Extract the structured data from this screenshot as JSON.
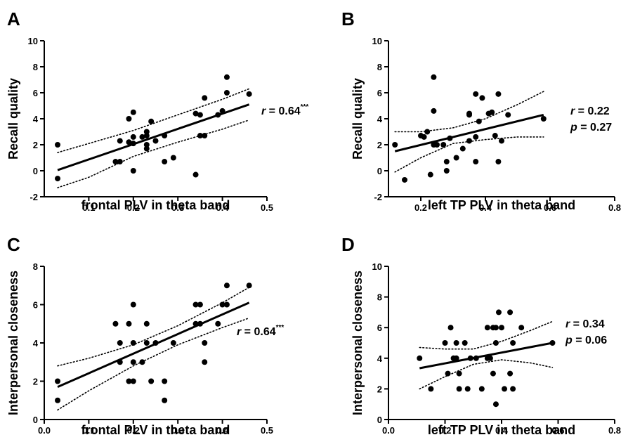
{
  "chart_data": [
    {
      "panel": "A",
      "type": "scatter",
      "xlabel": "frontal PLV in theta band",
      "ylabel": "Recall quality",
      "xlim": [
        0.0,
        0.5
      ],
      "ylim": [
        -2,
        10
      ],
      "xticks": [
        0.1,
        0.2,
        0.3,
        0.4,
        0.5
      ],
      "xtick_labels": [
        "0.1",
        "0.2",
        "0.3",
        "0.4",
        "0.5"
      ],
      "yticks": [
        -2,
        0,
        2,
        4,
        6,
        8,
        10
      ],
      "ytick_labels": [
        "-2",
        "0",
        "2",
        "4",
        "6",
        "8",
        "10"
      ],
      "points": [
        [
          0.03,
          2.0
        ],
        [
          0.03,
          -0.6
        ],
        [
          0.16,
          0.7
        ],
        [
          0.17,
          2.3
        ],
        [
          0.17,
          0.7
        ],
        [
          0.19,
          2.2
        ],
        [
          0.19,
          4.0
        ],
        [
          0.2,
          4.5
        ],
        [
          0.2,
          2.1
        ],
        [
          0.2,
          0.0
        ],
        [
          0.2,
          2.6
        ],
        [
          0.22,
          2.6
        ],
        [
          0.23,
          2.7
        ],
        [
          0.23,
          3.0
        ],
        [
          0.23,
          1.7
        ],
        [
          0.23,
          2.0
        ],
        [
          0.24,
          3.8
        ],
        [
          0.25,
          2.3
        ],
        [
          0.27,
          2.7
        ],
        [
          0.27,
          0.7
        ],
        [
          0.29,
          1.0
        ],
        [
          0.34,
          -0.3
        ],
        [
          0.34,
          4.4
        ],
        [
          0.35,
          4.3
        ],
        [
          0.35,
          2.7
        ],
        [
          0.36,
          2.7
        ],
        [
          0.36,
          5.6
        ],
        [
          0.39,
          4.3
        ],
        [
          0.4,
          4.6
        ],
        [
          0.41,
          7.2
        ],
        [
          0.41,
          6.0
        ],
        [
          0.46,
          5.9
        ]
      ],
      "fit": {
        "x": [
          0.03,
          0.46
        ],
        "y": [
          0.05,
          5.1
        ]
      },
      "ci_upper": {
        "x": [
          0.03,
          0.1,
          0.2,
          0.3,
          0.4,
          0.46
        ],
        "y": [
          1.4,
          2.1,
          3.1,
          4.3,
          5.5,
          6.3
        ]
      },
      "ci_lower": {
        "x": [
          0.03,
          0.1,
          0.2,
          0.3,
          0.4,
          0.46
        ],
        "y": [
          -1.3,
          -0.5,
          1.1,
          2.2,
          3.2,
          3.9
        ]
      },
      "stat_line1": "r = 0.64",
      "stat_sig": "***",
      "stat_line2": ""
    },
    {
      "panel": "B",
      "type": "scatter",
      "xlabel": "left TP PLV in theta band",
      "ylabel": "Recall quality",
      "xlim": [
        0.1,
        0.8
      ],
      "ylim": [
        -2,
        10
      ],
      "xticks": [
        0.2,
        0.4,
        0.6,
        0.8
      ],
      "xtick_labels": [
        "0.2",
        "0.4",
        "0.6",
        "0.8"
      ],
      "yticks": [
        -2,
        0,
        2,
        4,
        6,
        8,
        10
      ],
      "ytick_labels": [
        "-2",
        "0",
        "2",
        "4",
        "6",
        "8",
        "10"
      ],
      "points": [
        [
          0.12,
          2.0
        ],
        [
          0.15,
          -0.7
        ],
        [
          0.2,
          2.7
        ],
        [
          0.21,
          2.6
        ],
        [
          0.22,
          3.0
        ],
        [
          0.23,
          -0.3
        ],
        [
          0.24,
          7.2
        ],
        [
          0.24,
          4.6
        ],
        [
          0.24,
          2.0
        ],
        [
          0.25,
          2.0
        ],
        [
          0.27,
          2.0
        ],
        [
          0.28,
          0.7
        ],
        [
          0.28,
          0.0
        ],
        [
          0.29,
          2.5
        ],
        [
          0.31,
          1.0
        ],
        [
          0.33,
          1.7
        ],
        [
          0.35,
          2.3
        ],
        [
          0.35,
          4.3
        ],
        [
          0.35,
          4.4
        ],
        [
          0.37,
          0.7
        ],
        [
          0.37,
          2.6
        ],
        [
          0.37,
          5.9
        ],
        [
          0.38,
          3.8
        ],
        [
          0.39,
          5.6
        ],
        [
          0.41,
          4.4
        ],
        [
          0.42,
          4.5
        ],
        [
          0.43,
          2.7
        ],
        [
          0.44,
          5.9
        ],
        [
          0.44,
          0.7
        ],
        [
          0.45,
          2.3
        ],
        [
          0.47,
          4.3
        ],
        [
          0.58,
          4.0
        ]
      ],
      "fit": {
        "x": [
          0.12,
          0.58
        ],
        "y": [
          1.5,
          4.3
        ]
      },
      "ci_upper": {
        "x": [
          0.12,
          0.2,
          0.3,
          0.4,
          0.5,
          0.58
        ],
        "y": [
          3.0,
          3.0,
          3.3,
          4.0,
          5.1,
          6.1
        ]
      },
      "ci_lower": {
        "x": [
          0.12,
          0.2,
          0.3,
          0.4,
          0.5,
          0.58
        ],
        "y": [
          -0.1,
          1.0,
          2.1,
          2.4,
          2.6,
          2.6
        ]
      },
      "stat_line1": "r = 0.22",
      "stat_sig": "",
      "stat_line2": "p = 0.27"
    },
    {
      "panel": "C",
      "type": "scatter",
      "xlabel": "frontal PLV in theta band",
      "ylabel": "Interpersonal closeness",
      "xlim": [
        0.0,
        0.5
      ],
      "ylim": [
        0,
        8
      ],
      "xticks": [
        0.0,
        0.1,
        0.2,
        0.3,
        0.4,
        0.5
      ],
      "xtick_labels": [
        "0.0",
        "0.1",
        "0.2",
        "0.3",
        "0.4",
        "0.5"
      ],
      "yticks": [
        0,
        2,
        4,
        6,
        8
      ],
      "ytick_labels": [
        "0",
        "2",
        "4",
        "6",
        "8"
      ],
      "points": [
        [
          0.03,
          2.0
        ],
        [
          0.03,
          1.0
        ],
        [
          0.16,
          5.0
        ],
        [
          0.17,
          4.0
        ],
        [
          0.17,
          3.0
        ],
        [
          0.19,
          5.0
        ],
        [
          0.19,
          2.0
        ],
        [
          0.2,
          6.0
        ],
        [
          0.2,
          4.0
        ],
        [
          0.2,
          3.0
        ],
        [
          0.2,
          2.0
        ],
        [
          0.22,
          3.0
        ],
        [
          0.23,
          4.0
        ],
        [
          0.23,
          5.0
        ],
        [
          0.24,
          2.0
        ],
        [
          0.25,
          4.0
        ],
        [
          0.27,
          2.0
        ],
        [
          0.27,
          1.0
        ],
        [
          0.29,
          4.0
        ],
        [
          0.34,
          6.0
        ],
        [
          0.34,
          5.0
        ],
        [
          0.35,
          6.0
        ],
        [
          0.35,
          5.0
        ],
        [
          0.36,
          4.0
        ],
        [
          0.36,
          3.0
        ],
        [
          0.39,
          5.0
        ],
        [
          0.4,
          6.0
        ],
        [
          0.41,
          7.0
        ],
        [
          0.41,
          6.0
        ],
        [
          0.46,
          7.0
        ]
      ],
      "fit": {
        "x": [
          0.03,
          0.46
        ],
        "y": [
          1.7,
          6.1
        ]
      },
      "ci_upper": {
        "x": [
          0.03,
          0.1,
          0.2,
          0.3,
          0.4,
          0.46
        ],
        "y": [
          2.8,
          3.2,
          3.9,
          4.9,
          6.1,
          6.9
        ]
      },
      "ci_lower": {
        "x": [
          0.03,
          0.1,
          0.2,
          0.3,
          0.4,
          0.46
        ],
        "y": [
          0.5,
          1.5,
          2.8,
          3.9,
          4.8,
          5.3
        ]
      },
      "stat_line1": "r = 0.64",
      "stat_sig": "***",
      "stat_line2": ""
    },
    {
      "panel": "D",
      "type": "scatter",
      "xlabel": "left TP PLV in theta band",
      "ylabel": "Interpersonal closeness",
      "xlim": [
        0.0,
        0.8
      ],
      "ylim": [
        0,
        10
      ],
      "xticks": [
        0.0,
        0.2,
        0.4,
        0.6,
        0.8
      ],
      "xtick_labels": [
        "0.0",
        "0.2",
        "0.4",
        "0.6",
        "0.8"
      ],
      "yticks": [
        0,
        2,
        4,
        6,
        8,
        10
      ],
      "ytick_labels": [
        "0",
        "2",
        "4",
        "6",
        "8",
        "10"
      ],
      "points": [
        [
          0.11,
          4.0
        ],
        [
          0.15,
          2.0
        ],
        [
          0.2,
          5.0
        ],
        [
          0.21,
          3.0
        ],
        [
          0.22,
          6.0
        ],
        [
          0.23,
          4.0
        ],
        [
          0.24,
          4.0
        ],
        [
          0.24,
          5.0
        ],
        [
          0.25,
          3.0
        ],
        [
          0.25,
          2.0
        ],
        [
          0.27,
          5.0
        ],
        [
          0.28,
          2.0
        ],
        [
          0.29,
          4.0
        ],
        [
          0.31,
          4.0
        ],
        [
          0.33,
          2.0
        ],
        [
          0.35,
          4.0
        ],
        [
          0.35,
          6.0
        ],
        [
          0.36,
          4.0
        ],
        [
          0.37,
          6.0
        ],
        [
          0.37,
          3.0
        ],
        [
          0.38,
          1.0
        ],
        [
          0.38,
          5.0
        ],
        [
          0.38,
          6.0
        ],
        [
          0.39,
          7.0
        ],
        [
          0.4,
          6.0
        ],
        [
          0.41,
          2.0
        ],
        [
          0.43,
          3.0
        ],
        [
          0.43,
          7.0
        ],
        [
          0.44,
          5.0
        ],
        [
          0.44,
          2.0
        ],
        [
          0.47,
          6.0
        ],
        [
          0.58,
          5.0
        ]
      ],
      "fit": {
        "x": [
          0.11,
          0.58
        ],
        "y": [
          3.35,
          5.0
        ]
      },
      "ci_upper": {
        "x": [
          0.11,
          0.2,
          0.3,
          0.4,
          0.5,
          0.58
        ],
        "y": [
          4.7,
          4.6,
          4.6,
          5.1,
          5.8,
          6.4
        ]
      },
      "ci_lower": {
        "x": [
          0.11,
          0.2,
          0.3,
          0.4,
          0.5,
          0.58
        ],
        "y": [
          2.0,
          2.8,
          3.6,
          3.9,
          3.7,
          3.4
        ]
      },
      "stat_line1": "r = 0.34",
      "stat_sig": "",
      "stat_line2": "p = 0.06"
    }
  ]
}
